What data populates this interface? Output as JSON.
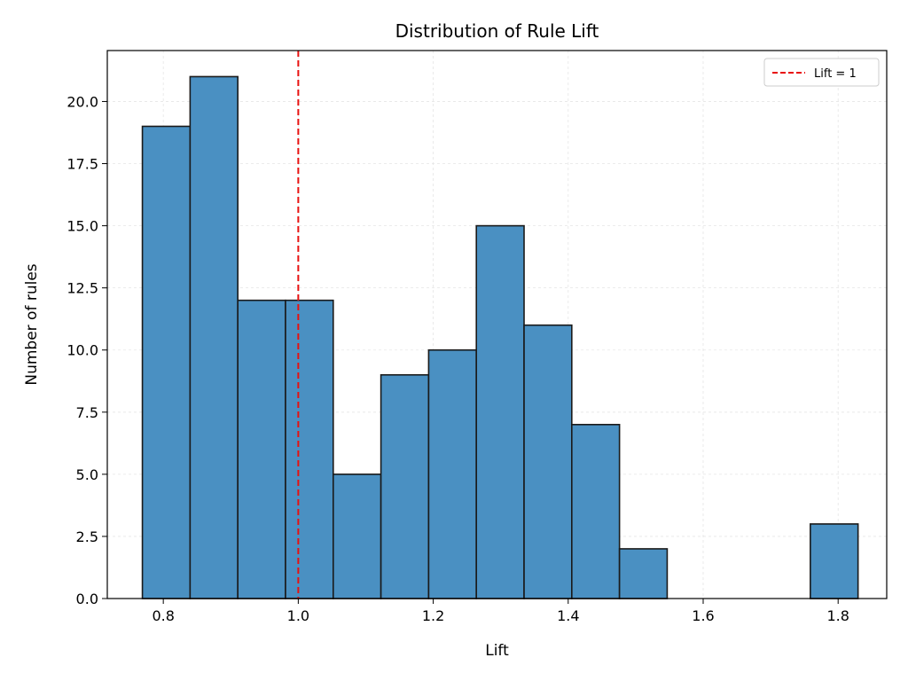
{
  "chart_data": {
    "type": "bar",
    "title": "Distribution of Rule Lift",
    "xlabel": "Lift",
    "ylabel": "Number of rules",
    "bin_edges": [
      0.769,
      0.8397,
      0.9104,
      0.9811,
      1.0518,
      1.1225,
      1.1932,
      1.2639,
      1.3346,
      1.4053,
      1.476,
      1.5467,
      1.6174,
      1.6881,
      1.7588,
      1.8295
    ],
    "values": [
      19,
      21,
      12,
      12,
      5,
      9,
      10,
      15,
      11,
      7,
      2,
      0,
      0,
      0,
      3
    ],
    "xlim": [
      0.717,
      1.872
    ],
    "ylim": [
      0,
      22.05
    ],
    "xticks": [
      0.8,
      1.0,
      1.2,
      1.4,
      1.6,
      1.8
    ],
    "xtick_labels": [
      "0.8",
      "1.0",
      "1.2",
      "1.4",
      "1.6",
      "1.8"
    ],
    "yticks": [
      0,
      2.5,
      5,
      7.5,
      10,
      12.5,
      15,
      17.5,
      20
    ],
    "ytick_labels": [
      "0.0",
      "2.5",
      "5.0",
      "7.5",
      "10.0",
      "12.5",
      "15.0",
      "17.5",
      "20.0"
    ],
    "grid": true,
    "bar_color": "#4a90c2",
    "bar_edge_color": "#1a1a1a",
    "reference_line": {
      "x": 1.0,
      "label": "Lift = 1",
      "color": "#e8100f",
      "style": "dashed"
    },
    "legend": {
      "position": "top-right",
      "entries": [
        "Lift = 1"
      ]
    }
  }
}
